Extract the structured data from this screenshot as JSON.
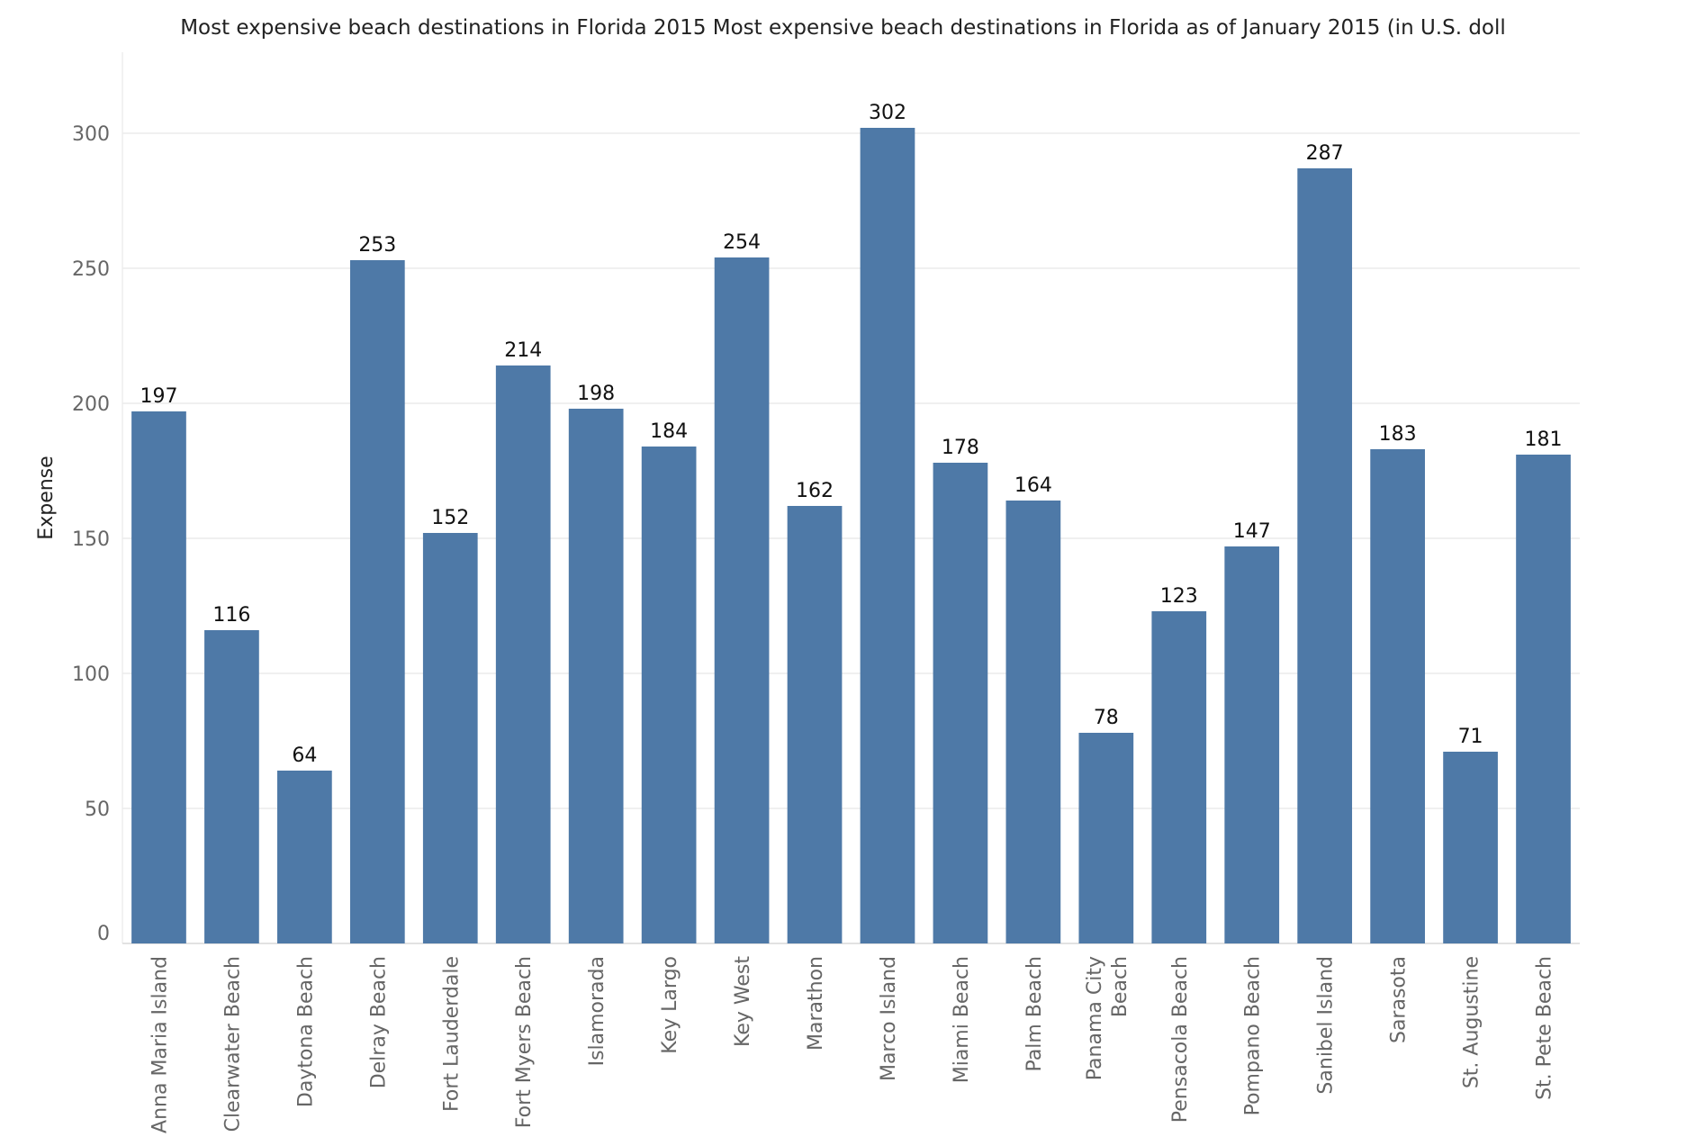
{
  "chart_data": {
    "type": "bar",
    "title": "Most expensive beach destinations in Florida 2015 Most expensive beach destinations in Florida as of January 2015 (in U.S. doll",
    "xlabel": "",
    "ylabel": "Expense",
    "ylim": [
      0,
      330
    ],
    "yticks": [
      0,
      50,
      100,
      150,
      200,
      250,
      300
    ],
    "grid": true,
    "bar_color": "#4e79a7",
    "categories": [
      "Anna Maria Island",
      "Clearwater Beach",
      "Daytona Beach",
      "Delray Beach",
      "Fort Lauderdale",
      "Fort Myers Beach",
      "Islamorada",
      "Key Largo",
      "Key West",
      "Marathon",
      "Marco Island",
      "Miami Beach",
      "Palm Beach",
      "Panama City Beach",
      "Pensacola Beach",
      "Pompano Beach",
      "Sanibel Island",
      "Sarasota",
      "St. Augustine",
      "St. Pete Beach"
    ],
    "values": [
      197,
      116,
      64,
      253,
      152,
      214,
      198,
      184,
      254,
      162,
      302,
      178,
      164,
      78,
      123,
      147,
      287,
      183,
      71,
      181
    ]
  }
}
